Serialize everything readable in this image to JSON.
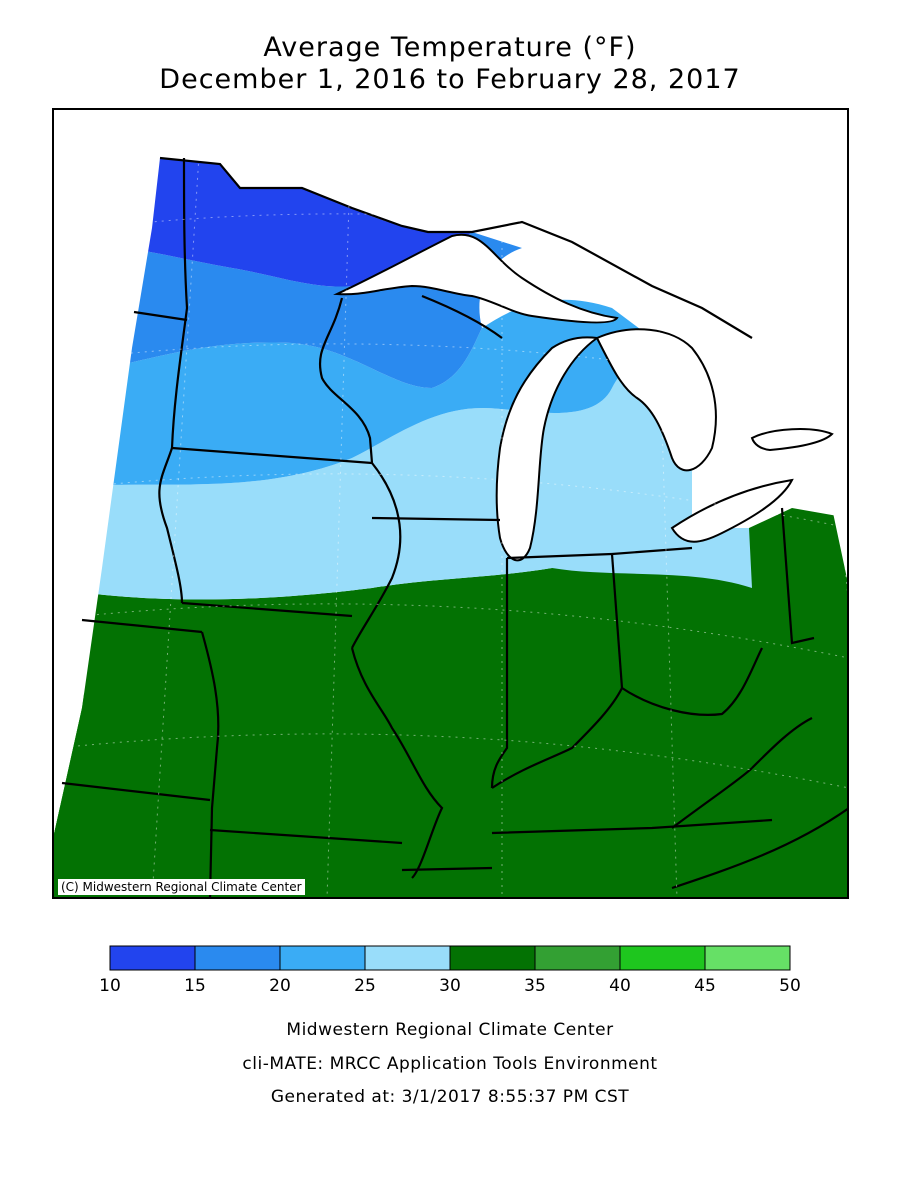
{
  "title": {
    "line1": "Average Temperature (°F)",
    "line2": "December 1, 2016 to February 28, 2017"
  },
  "map": {
    "copyright": "(C) Midwestern Regional Climate Center",
    "bands": [
      {
        "range": "10-15",
        "color": "#2244ee"
      },
      {
        "range": "15-20",
        "color": "#2a8aef"
      },
      {
        "range": "20-25",
        "color": "#3aacf5"
      },
      {
        "range": "25-30",
        "color": "#99ddfa"
      },
      {
        "range": "30-35",
        "color": "#037203"
      },
      {
        "range": "35-40",
        "color": "#33a033"
      },
      {
        "range": "40-45",
        "color": "#1ec61e"
      },
      {
        "range": "45-50",
        "color": "#66e066"
      }
    ]
  },
  "legend": {
    "ticks": [
      "10",
      "15",
      "20",
      "25",
      "30",
      "35",
      "40",
      "45",
      "50"
    ],
    "colors": [
      "#2244ee",
      "#2a8aef",
      "#3aacf5",
      "#99ddfa",
      "#037203",
      "#33a033",
      "#1ec61e",
      "#66e066"
    ]
  },
  "credits": {
    "line1": "Midwestern Regional Climate Center",
    "line2": "cli-MATE: MRCC Application Tools Environment",
    "line3": "Generated at: 3/1/2017 8:55:37 PM CST"
  }
}
